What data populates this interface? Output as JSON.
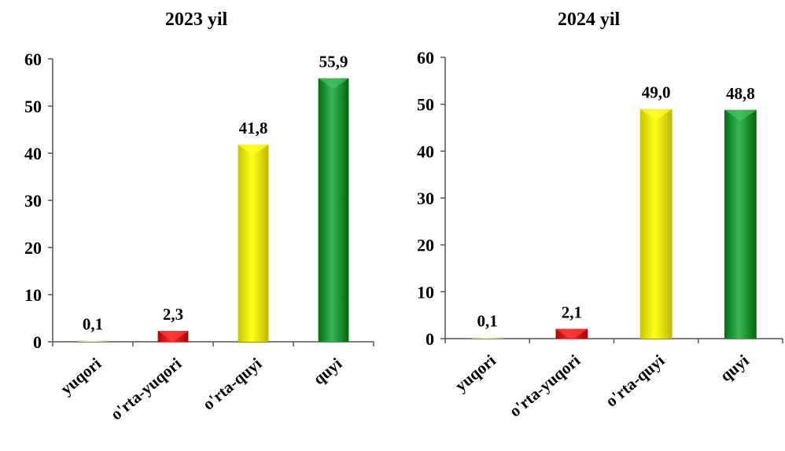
{
  "chart_data": [
    {
      "type": "bar",
      "title": "2023 yil",
      "categories": [
        "yuqori",
        "o'rta-yuqori",
        "o'rta-quyi",
        "quyi"
      ],
      "values": [
        0.1,
        2.3,
        41.8,
        55.9
      ],
      "value_labels": [
        "0,1",
        "2,3",
        "41,8",
        "55,9"
      ],
      "bar_colors": [
        "#f2f2a0",
        "#e01818",
        "#f5f000",
        "#1f9e3e"
      ],
      "ylim": [
        0,
        60
      ],
      "yticks": [
        0,
        10,
        20,
        30,
        40,
        50,
        60
      ],
      "grid": false,
      "xlabel": "",
      "ylabel": ""
    },
    {
      "type": "bar",
      "title": "2024 yil",
      "categories": [
        "yuqori",
        "o'rta-yuqori",
        "o'rta-quyi",
        "quyi"
      ],
      "values": [
        0.1,
        2.1,
        49.0,
        48.8
      ],
      "value_labels": [
        "0,1",
        "2,1",
        "49,0",
        "48,8"
      ],
      "bar_colors": [
        "#f2f2a0",
        "#e01818",
        "#f5f000",
        "#1f9e3e"
      ],
      "ylim": [
        0,
        60
      ],
      "yticks": [
        0,
        10,
        20,
        30,
        40,
        50,
        60
      ],
      "grid": false,
      "xlabel": "",
      "ylabel": ""
    }
  ]
}
